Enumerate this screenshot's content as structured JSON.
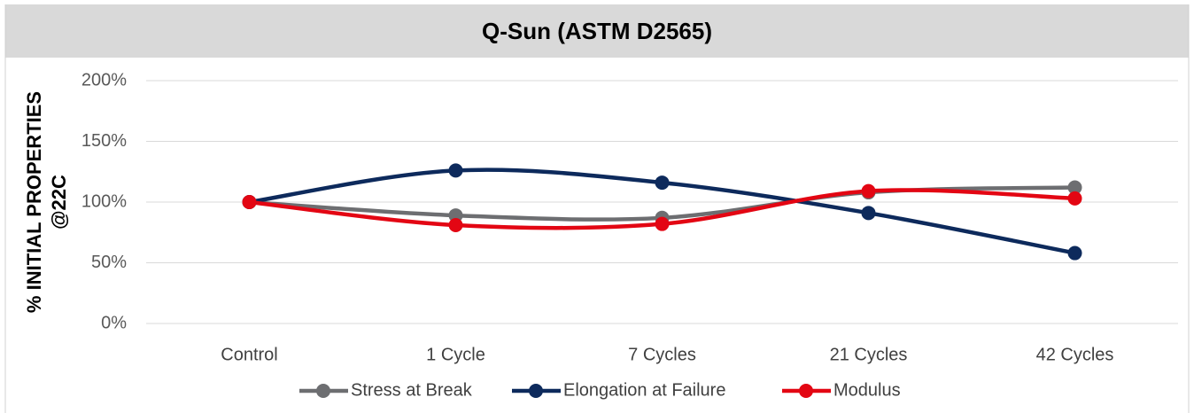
{
  "chart_data": {
    "type": "line",
    "title": "Q-Sun (ASTM D2565)",
    "y_label": [
      "% INITIAL PROPERTIES",
      "@22C"
    ],
    "categories": [
      "Control",
      "1 Cycle",
      "7 Cycles",
      "21 Cycles",
      "42 Cycles"
    ],
    "series": [
      {
        "name": "Stress at Break",
        "color": "#6d6e71",
        "values": [
          100,
          89,
          87,
          108,
          112
        ]
      },
      {
        "name": "Elongation at Failure",
        "color": "#0d2a5c",
        "values": [
          100,
          126,
          116,
          91,
          58
        ]
      },
      {
        "name": "Modulus",
        "color": "#e30613",
        "values": [
          100,
          81,
          82,
          109,
          103
        ]
      }
    ],
    "ylim": [
      0,
      200
    ],
    "yticks": [
      {
        "value": 0,
        "label": "0%"
      },
      {
        "value": 50,
        "label": "50%"
      },
      {
        "value": 100,
        "label": "100%"
      },
      {
        "value": 150,
        "label": "150%"
      },
      {
        "value": 200,
        "label": "200%"
      }
    ],
    "grid": true,
    "legend": "bottom",
    "smooth": true
  }
}
